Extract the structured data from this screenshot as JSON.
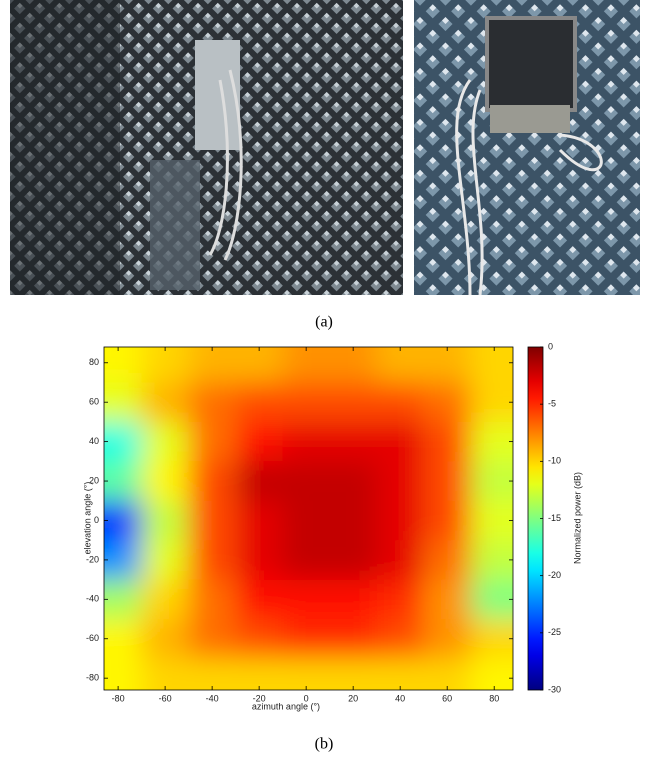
{
  "captions": {
    "a": "(a)",
    "b": "(b)"
  },
  "chart_data": {
    "type": "heatmap",
    "xlabel": "azimuth angle (°)",
    "ylabel": "elevation angle (°)",
    "colorbar_label": "Normalized power (dB)",
    "x": [
      -80,
      -60,
      -40,
      -20,
      0,
      20,
      40,
      60,
      80
    ],
    "y": [
      80,
      60,
      40,
      20,
      0,
      -20,
      -40,
      -60,
      -80
    ],
    "values": [
      [
        -11,
        -10,
        -9,
        -9,
        -8,
        -8,
        -9,
        -9,
        -10
      ],
      [
        -12,
        -9,
        -7,
        -6,
        -6,
        -6,
        -6,
        -7,
        -10
      ],
      [
        -18,
        -12,
        -7,
        -4,
        -3,
        -3,
        -3,
        -6,
        -12
      ],
      [
        -16,
        -11,
        -6,
        -2,
        -2,
        -2,
        -3,
        -6,
        -13
      ],
      [
        -25,
        -13,
        -6,
        -3,
        -2,
        -2,
        -3,
        -6,
        -12
      ],
      [
        -22,
        -12,
        -6,
        -3,
        -2,
        -2,
        -3,
        -7,
        -13
      ],
      [
        -14,
        -10,
        -7,
        -4,
        -4,
        -4,
        -5,
        -8,
        -15
      ],
      [
        -11,
        -9,
        -7,
        -6,
        -5,
        -5,
        -6,
        -8,
        -10
      ],
      [
        -11,
        -10,
        -10,
        -10,
        -10,
        -10,
        -10,
        -10,
        -11
      ]
    ],
    "xlim": [
      -86,
      88
    ],
    "ylim": [
      -86,
      88
    ],
    "xticks": [
      -80,
      -60,
      -40,
      -20,
      0,
      20,
      40,
      60,
      80
    ],
    "yticks": [
      -80,
      -60,
      -40,
      -20,
      0,
      20,
      40,
      60,
      80
    ],
    "clim": [
      -30,
      0
    ],
    "cticks": [
      0,
      -5,
      -10,
      -15,
      -20,
      -25,
      -30
    ],
    "colormap": "jet"
  }
}
